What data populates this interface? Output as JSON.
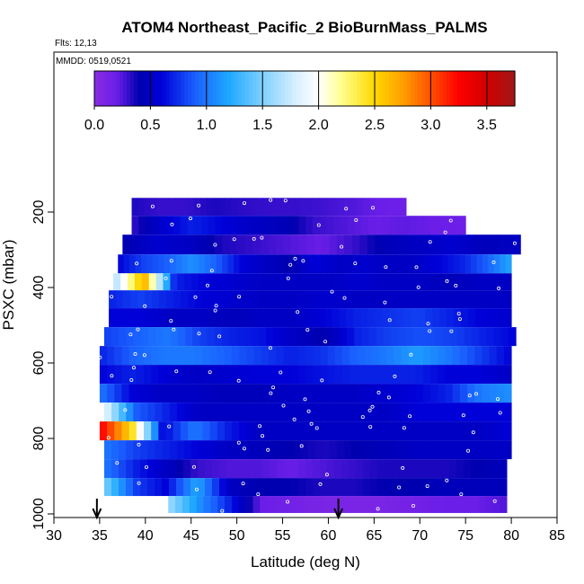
{
  "chart_data": {
    "type": "heatmap",
    "title": "ATOM4 Northeast_Pacific_2 BioBurnMass_PALMS",
    "annotations": {
      "flights": "Flts: 12,13",
      "dates": "MMDD: 0519,0521"
    },
    "xlabel": "Latitude (deg N)",
    "ylabel": "PSXC (mbar)",
    "xlim": [
      30,
      85
    ],
    "ylim": [
      1000,
      90
    ],
    "y_reversed": true,
    "x_ticks": [
      30,
      35,
      40,
      45,
      50,
      55,
      60,
      65,
      70,
      75,
      80,
      85
    ],
    "x_tick_labels": [
      "30",
      "35",
      "40",
      "45",
      "50",
      "55",
      "60",
      "65",
      "70",
      "75",
      "80",
      "85"
    ],
    "y_ticks": [
      200,
      400,
      600,
      800,
      1000
    ],
    "y_tick_labels": [
      "200",
      "400",
      "600",
      "800",
      "1000"
    ],
    "colorbar": {
      "range": [
        0,
        3.75
      ],
      "ticks": [
        0.0,
        0.5,
        1.0,
        1.5,
        2.0,
        2.5,
        3.0,
        3.5
      ],
      "tick_labels": [
        "0.0",
        "0.5",
        "1.0",
        "1.5",
        "2.0",
        "2.5",
        "3.0",
        "3.5"
      ],
      "stops": [
        {
          "v": 0.0,
          "c": "#8a2be2"
        },
        {
          "v": 0.2,
          "c": "#6a1ee8"
        },
        {
          "v": 0.4,
          "c": "#0000b0"
        },
        {
          "v": 0.6,
          "c": "#0000d8"
        },
        {
          "v": 0.9,
          "c": "#1a60ff"
        },
        {
          "v": 1.2,
          "c": "#1ea8ff"
        },
        {
          "v": 1.5,
          "c": "#7fd0ff"
        },
        {
          "v": 1.8,
          "c": "#d8f0ff"
        },
        {
          "v": 2.0,
          "c": "#ffffff"
        },
        {
          "v": 2.2,
          "c": "#ffff90"
        },
        {
          "v": 2.5,
          "c": "#ffd800"
        },
        {
          "v": 2.75,
          "c": "#ffa000"
        },
        {
          "v": 3.0,
          "c": "#ff5000"
        },
        {
          "v": 3.25,
          "c": "#ff0000"
        },
        {
          "v": 3.5,
          "c": "#d00000"
        },
        {
          "v": 3.75,
          "c": "#a01818"
        }
      ]
    },
    "arrows_at_latitude": [
      34.7,
      61.1
    ],
    "bands": [
      {
        "p": 185,
        "x0": 38.5,
        "x1": 68.5,
        "v": [
          0.35,
          0.3,
          0.3,
          0.35,
          0.32,
          0.3,
          0.3,
          0.28,
          0.25,
          0.2,
          0.18
        ]
      },
      {
        "p": 235,
        "x0": 38.5,
        "x1": 75.0,
        "v": [
          0.3,
          0.55,
          0.7,
          0.6,
          0.5,
          0.45,
          0.3,
          0.25,
          0.2,
          0.22,
          0.2,
          0.18
        ]
      },
      {
        "p": 285,
        "x0": 37.5,
        "x1": 81.0,
        "v": [
          0.4,
          0.55,
          0.5,
          0.35,
          0.3,
          0.25,
          0.2,
          0.3,
          0.45,
          0.5,
          0.55,
          0.45,
          0.5
        ]
      },
      {
        "p": 340,
        "x0": 37.0,
        "x1": 80.0,
        "v": [
          0.6,
          0.8,
          0.9,
          1.1,
          0.9,
          0.6,
          0.5,
          0.4,
          0.6,
          0.5,
          0.55,
          0.5,
          0.5,
          0.6,
          0.7,
          0.9,
          1.2
        ]
      },
      {
        "p": 385,
        "x0": 36.5,
        "x1": 80.0,
        "v": [
          1.6,
          2.7,
          0.7,
          0.6,
          0.55,
          0.5,
          0.5,
          0.5,
          0.55,
          0.5,
          0.5,
          0.45,
          0.5,
          0.5
        ]
      },
      {
        "p": 430,
        "x0": 36.0,
        "x1": 80.0,
        "v": [
          0.7,
          0.8,
          0.7,
          0.6,
          0.55,
          0.5,
          0.5,
          0.55,
          0.5,
          0.5,
          0.5,
          0.5,
          0.5,
          0.5
        ]
      },
      {
        "p": 480,
        "x0": 36.0,
        "x1": 80.0,
        "v": [
          0.6,
          0.6,
          0.5,
          0.5,
          0.45,
          0.5,
          0.5,
          0.6,
          0.7,
          0.75,
          0.8,
          0.7,
          0.6,
          0.55
        ]
      },
      {
        "p": 530,
        "x0": 35.5,
        "x1": 80.5,
        "v": [
          0.8,
          0.9,
          1.0,
          0.8,
          0.7,
          0.65,
          0.5,
          0.4,
          0.7,
          0.8,
          0.85,
          0.8,
          0.7,
          0.6
        ]
      },
      {
        "p": 580,
        "x0": 35.0,
        "x1": 80.0,
        "v": [
          0.7,
          0.9,
          1.0,
          1.0,
          0.9,
          0.8,
          0.7,
          0.75,
          0.9,
          1.0,
          1.15,
          1.0,
          0.8,
          0.6
        ]
      },
      {
        "p": 630,
        "x0": 35.0,
        "x1": 80.0,
        "v": [
          0.6,
          0.7,
          0.6,
          0.5,
          0.55,
          0.6,
          0.6,
          0.65,
          0.7,
          0.7,
          0.7,
          0.6,
          0.6,
          0.5
        ]
      },
      {
        "p": 680,
        "x0": 35.0,
        "x1": 80.0,
        "v": [
          1.0,
          0.6,
          0.5,
          0.5,
          0.45,
          0.45,
          0.5,
          0.5,
          0.5,
          0.55,
          0.6,
          0.7,
          1.0,
          1.1
        ]
      },
      {
        "p": 730,
        "x0": 35.5,
        "x1": 80.0,
        "v": [
          1.9,
          0.9,
          0.7,
          0.5,
          0.5,
          0.5,
          0.5,
          0.5,
          0.5,
          0.5,
          0.6,
          0.6,
          0.6,
          0.6
        ]
      },
      {
        "p": 780,
        "x0": 35.0,
        "x1": 80.0,
        "v": [
          3.3,
          2.5,
          0.6,
          1.0,
          0.7,
          0.5,
          0.5,
          0.5,
          0.5,
          0.5,
          0.5,
          0.5,
          0.5,
          0.6
        ]
      },
      {
        "p": 830,
        "x0": 35.5,
        "x1": 80.0,
        "v": [
          1.0,
          0.8,
          0.7,
          0.6,
          0.5,
          0.45,
          0.4,
          0.35,
          0.4,
          0.45,
          0.5,
          0.5,
          0.5,
          0.5
        ]
      },
      {
        "p": 880,
        "x0": 35.5,
        "x1": 79.5,
        "v": [
          1.0,
          0.7,
          0.5,
          0.3,
          0.25,
          0.25,
          0.2,
          0.25,
          0.3,
          0.35,
          0.35,
          0.35,
          0.4,
          0.45
        ]
      },
      {
        "p": 930,
        "x0": 35.5,
        "x1": 79.5,
        "v": [
          1.5,
          0.8,
          0.6,
          1.2,
          0.5,
          0.4,
          0.4,
          0.35,
          0.35,
          0.4,
          0.4,
          0.45,
          0.45,
          0.45
        ]
      },
      {
        "p": 975,
        "x0": 42.5,
        "x1": 79.5,
        "v": [
          1.6,
          1.1,
          0.7,
          0.2,
          0.15,
          0.1,
          0.1,
          0.1,
          0.15,
          0.2,
          0.2,
          0.25
        ]
      }
    ]
  }
}
